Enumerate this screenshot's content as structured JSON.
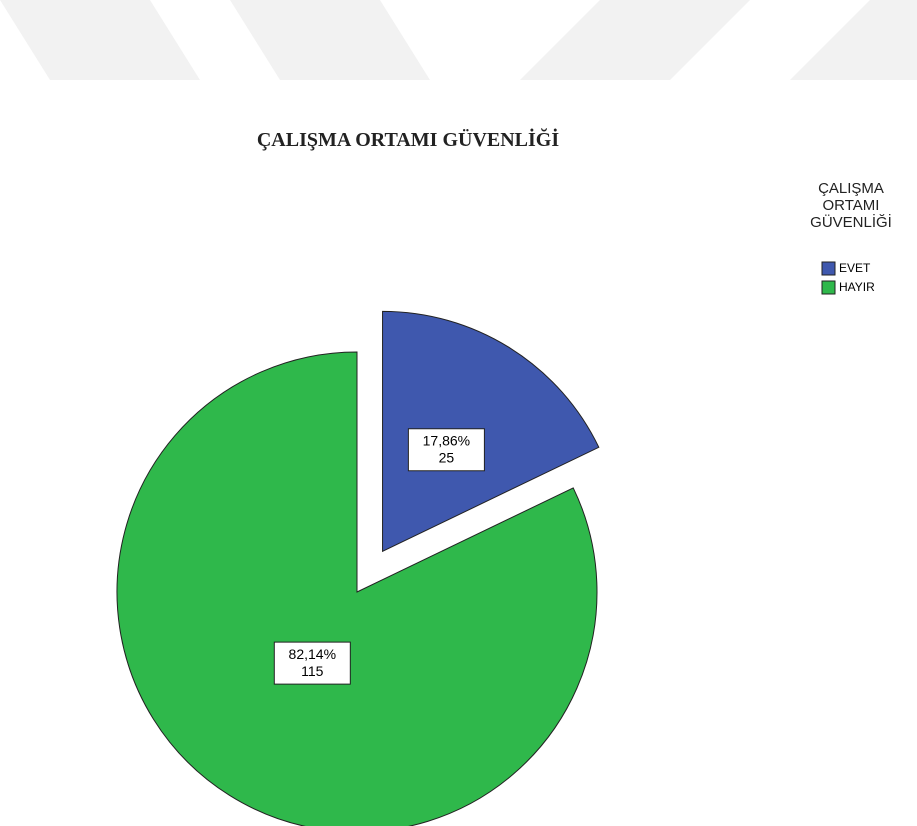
{
  "chart_data": {
    "type": "pie",
    "title": "ÇALIŞMA ORTAMI GÜVENLİĞİ",
    "legend_title": "ÇALIŞMA ORTAMI GÜVENLİĞİ",
    "categories": [
      "EVET",
      "HAYIR"
    ],
    "values": [
      25,
      115
    ],
    "percents": [
      17.86,
      82.14
    ],
    "percent_labels": [
      "17,86%",
      "82,14%"
    ],
    "colors": [
      "#3f58ae",
      "#2fb84b"
    ],
    "exploded": [
      true,
      false
    ],
    "legend": "top-right"
  }
}
